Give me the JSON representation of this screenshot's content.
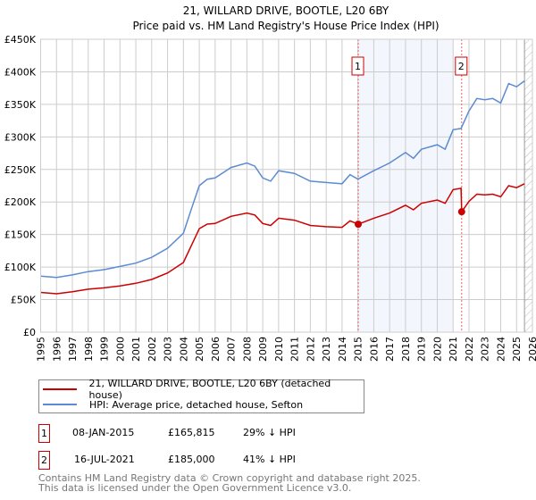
{
  "chart_data": {
    "type": "line",
    "title": "21, WILLARD DRIVE, BOOTLE, L20 6BY",
    "subtitle": "Price paid vs. HM Land Registry's House Price Index (HPI)",
    "xlim": [
      1995,
      2026
    ],
    "ylim": [
      0,
      450000
    ],
    "x_ticks": [
      "1995",
      "1996",
      "1997",
      "1998",
      "1999",
      "2000",
      "2001",
      "2002",
      "2003",
      "2004",
      "2005",
      "2006",
      "2007",
      "2008",
      "2009",
      "2010",
      "2011",
      "2012",
      "2013",
      "2014",
      "2015",
      "2016",
      "2017",
      "2018",
      "2019",
      "2020",
      "2021",
      "2022",
      "2023",
      "2024",
      "2025",
      "2026"
    ],
    "y_ticks": [
      {
        "v": 0,
        "label": "£0"
      },
      {
        "v": 50000,
        "label": "£50K"
      },
      {
        "v": 100000,
        "label": "£100K"
      },
      {
        "v": 150000,
        "label": "£150K"
      },
      {
        "v": 200000,
        "label": "£200K"
      },
      {
        "v": 250000,
        "label": "£250K"
      },
      {
        "v": 300000,
        "label": "£300K"
      },
      {
        "v": 350000,
        "label": "£350K"
      },
      {
        "v": 400000,
        "label": "£400K"
      },
      {
        "v": 450000,
        "label": "£450K"
      }
    ],
    "grid": true,
    "series": [
      {
        "name": "21, WILLARD DRIVE, BOOTLE, L20 6BY (detached house)",
        "color": "#cc0000",
        "x": [
          1995,
          1996,
          1997,
          1998,
          1999,
          2000,
          2001,
          2002,
          2003,
          2004,
          2004.5,
          2005,
          2005.5,
          2006,
          2007,
          2008,
          2008.5,
          2009,
          2009.5,
          2010,
          2011,
          2012,
          2013,
          2014,
          2014.5,
          2015.02,
          2016,
          2017,
          2018,
          2018.5,
          2019,
          2020,
          2020.5,
          2021,
          2021.5,
          2021.54,
          2022,
          2022.5,
          2023,
          2023.5,
          2024,
          2024.5,
          2025,
          2025.5
        ],
        "y": [
          61000,
          59000,
          62000,
          66000,
          68000,
          71000,
          75000,
          81000,
          91000,
          107000,
          133000,
          159000,
          166000,
          167000,
          178000,
          183000,
          180000,
          167000,
          164000,
          175000,
          172000,
          164000,
          162000,
          161000,
          171000,
          165815,
          175000,
          183000,
          195000,
          188000,
          198000,
          203000,
          198000,
          219000,
          221000,
          185000,
          201000,
          212000,
          211000,
          212000,
          208000,
          225000,
          222000,
          228000
        ]
      },
      {
        "name": "HPI: Average price, detached house, Sefton",
        "color": "#5b8bd0",
        "x": [
          1995,
          1996,
          1997,
          1998,
          1999,
          2000,
          2001,
          2002,
          2003,
          2004,
          2004.5,
          2005,
          2005.5,
          2006,
          2007,
          2008,
          2008.5,
          2009,
          2009.5,
          2010,
          2011,
          2012,
          2013,
          2014,
          2014.5,
          2015,
          2016,
          2017,
          2018,
          2018.5,
          2019,
          2020,
          2020.5,
          2021,
          2021.5,
          2022,
          2022.5,
          2023,
          2023.5,
          2024,
          2024.5,
          2025,
          2025.5
        ],
        "y": [
          86000,
          84000,
          88000,
          93000,
          96000,
          101000,
          106000,
          115000,
          129000,
          152000,
          189000,
          225000,
          235000,
          237000,
          253000,
          260000,
          255000,
          237000,
          232000,
          248000,
          244000,
          232000,
          230000,
          228000,
          242000,
          235000,
          248000,
          260000,
          276000,
          267000,
          281000,
          288000,
          281000,
          311000,
          313000,
          340000,
          359000,
          357000,
          359000,
          352000,
          382000,
          377000,
          386000
        ]
      }
    ],
    "sales": [
      {
        "n": "1",
        "x": 2015.02,
        "y": 165815
      },
      {
        "n": "2",
        "x": 2021.54,
        "y": 185000
      }
    ],
    "shaded_range": [
      2015.02,
      2021.0
    ],
    "hatched_from": 2025.5
  },
  "legend": {
    "items": [
      {
        "label": "21, WILLARD DRIVE, BOOTLE, L20 6BY (detached house)",
        "color": "#cc0000"
      },
      {
        "label": "HPI: Average price, detached house, Sefton",
        "color": "#5b8bd0"
      }
    ]
  },
  "transactions": [
    {
      "n": "1",
      "date": "08-JAN-2015",
      "price": "£165,815",
      "hpi": "29% ↓ HPI"
    },
    {
      "n": "2",
      "date": "16-JUL-2021",
      "price": "£185,000",
      "hpi": "41% ↓ HPI"
    }
  ],
  "footer": {
    "line1": "Contains HM Land Registry data © Crown copyright and database right 2025.",
    "line2": "This data is licensed under the Open Government Licence v3.0."
  }
}
